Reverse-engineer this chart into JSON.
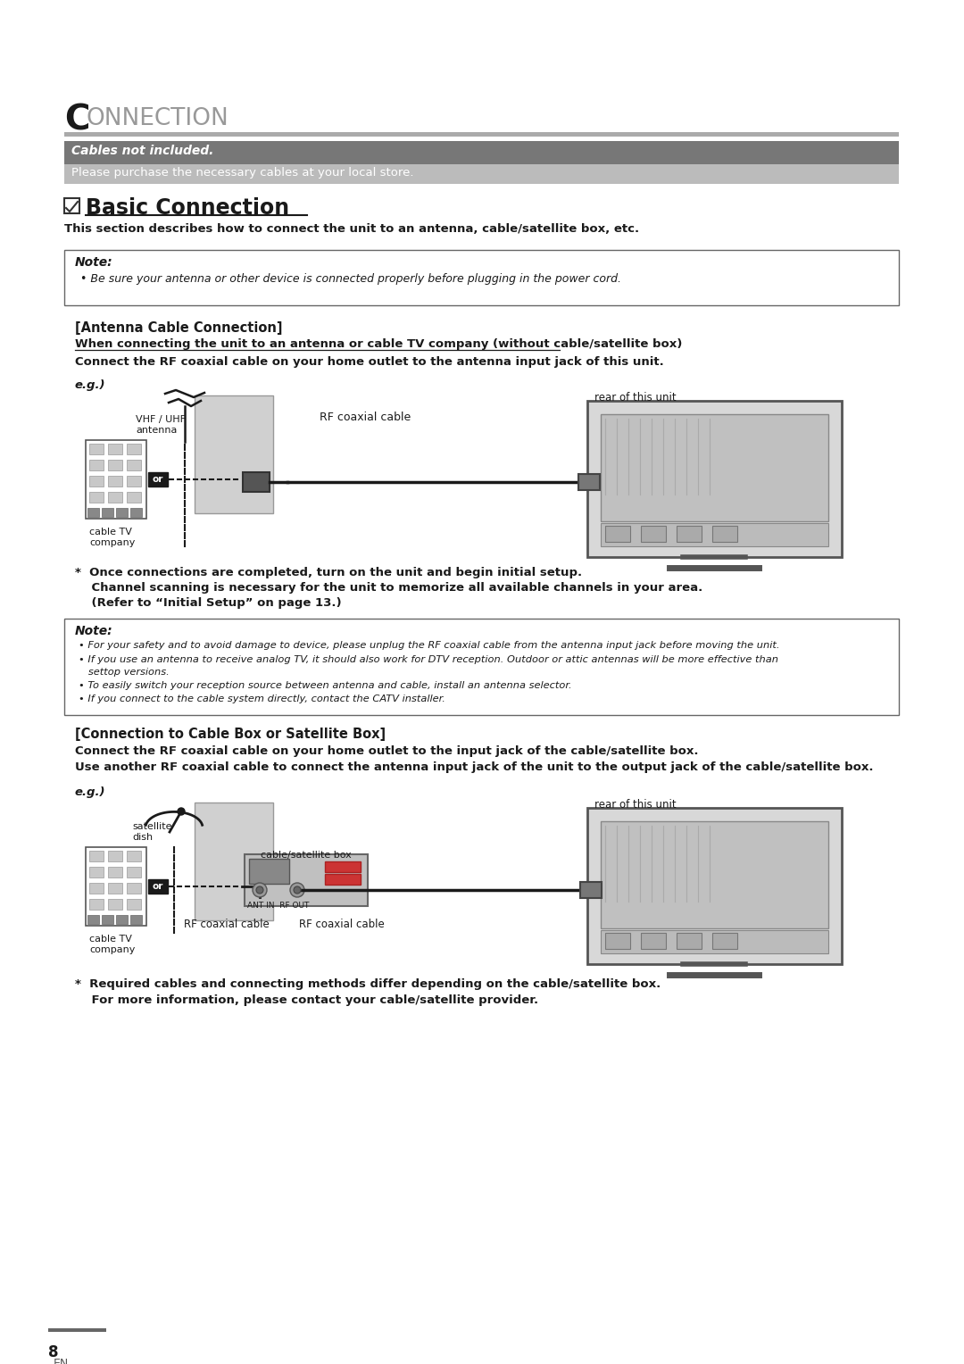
{
  "bg_color": "#ffffff",
  "title_C": "C",
  "title_rest": "ONNECTION",
  "cables_not_included": "Cables not included.",
  "cables_note": "Please purchase the necessary cables at your local store.",
  "section_title": "Basic Connection",
  "section_desc": "This section describes how to connect the unit to an antenna, cable/satellite box, etc.",
  "note1_title": "Note:",
  "note1_bullet": "Be sure your antenna or other device is connected properly before plugging in the power cord.",
  "antenna_title": "[Antenna Cable Connection]",
  "antenna_sub": "When connecting the unit to an antenna or cable TV company (without cable/satellite box)",
  "antenna_desc": "Connect the RF coaxial cable on your home outlet to the antenna input jack of this unit.",
  "eg_label": "e.g.)",
  "vhf_label": "VHF / UHF\nantenna",
  "rear_label1": "rear of this unit",
  "rf_cable_label": "RF coaxial cable",
  "cable_tv_label": "cable TV\ncompany",
  "asterisk_note1": "*  Once connections are completed, turn on the unit and begin initial setup.",
  "asterisk_note2": "    Channel scanning is necessary for the unit to memorize all available channels in your area.",
  "asterisk_note3": "    (Refer to “Initial Setup” on page 13.)",
  "note2_title": "Note:",
  "note2_b1": "For your safety and to avoid damage to device, please unplug the RF coaxial cable from the antenna input jack before moving the unit.",
  "note2_b2": "If you use an antenna to receive analog TV, it should also work for DTV reception. Outdoor or attic antennas will be more effective than",
  "note2_b2b": "   settop versions.",
  "note2_b3": "To easily switch your reception source between antenna and cable, install an antenna selector.",
  "note2_b4": "If you connect to the cable system directly, contact the CATV installer.",
  "conn_title": "[Connection to Cable Box or Satellite Box]",
  "conn_desc1": "Connect the RF coaxial cable on your home outlet to the input jack of the cable/satellite box.",
  "conn_desc2": "Use another RF coaxial cable to connect the antenna input jack of the unit to the output jack of the cable/satellite box.",
  "eg_label2": "e.g.)",
  "satellite_label": "satellite\ndish",
  "rear_label2": "rear of this unit",
  "cable_sat_label": "cable/satellite box",
  "ant_in_label": "ANT IN  RF OUT",
  "rf_cable_label2": "RF coaxial cable",
  "rf_cable_label3": "RF coaxial cable",
  "cable_tv_label2": "cable TV\ncompany",
  "footer_note1": "*  Required cables and connecting methods differ depending on the cable/satellite box.",
  "footer_note2": "    For more information, please contact your cable/satellite provider.",
  "page_num": "8",
  "page_en": "EN"
}
